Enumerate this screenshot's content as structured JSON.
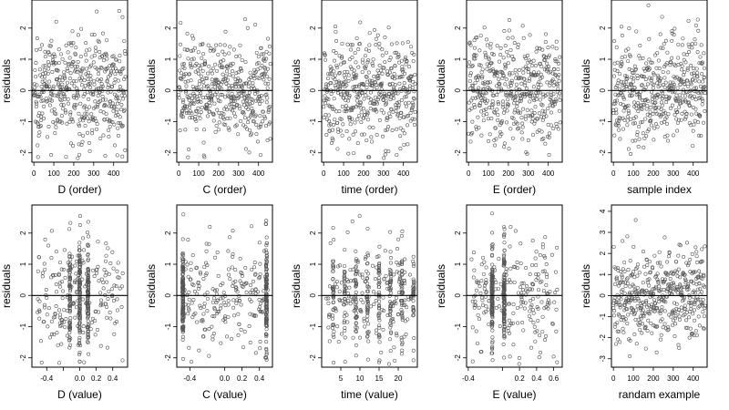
{
  "figure": {
    "point_color": "#555555",
    "line_color": "#000000",
    "background": "#ffffff"
  },
  "chart_data": [
    {
      "type": "scatter",
      "xlabel": "D (order)",
      "ylabel": "residuals",
      "xlim": [
        -10,
        470
      ],
      "ylim": [
        -2.3,
        2.9
      ],
      "xticks": [
        0,
        100,
        200,
        300,
        400
      ],
      "yticks": [
        -2,
        -1,
        0,
        1,
        2
      ],
      "x_kind": "index",
      "x_clusters": [],
      "refline_y": 0,
      "n_points": 470
    },
    {
      "type": "scatter",
      "xlabel": "C (order)",
      "ylabel": "residuals",
      "xlim": [
        -10,
        470
      ],
      "ylim": [
        -2.3,
        2.9
      ],
      "xticks": [
        0,
        100,
        200,
        300,
        400
      ],
      "yticks": [
        -2,
        -1,
        0,
        1,
        2
      ],
      "x_kind": "index",
      "x_clusters": [],
      "refline_y": 0,
      "n_points": 470
    },
    {
      "type": "scatter",
      "xlabel": "time (order)",
      "ylabel": "residuals",
      "xlim": [
        -10,
        470
      ],
      "ylim": [
        -2.3,
        2.9
      ],
      "xticks": [
        0,
        100,
        200,
        300,
        400
      ],
      "yticks": [
        -2,
        -1,
        0,
        1,
        2
      ],
      "x_kind": "index",
      "x_clusters": [],
      "refline_y": 0,
      "n_points": 470
    },
    {
      "type": "scatter",
      "xlabel": "E (order)",
      "ylabel": "residuals",
      "xlim": [
        -10,
        470
      ],
      "ylim": [
        -2.3,
        2.9
      ],
      "xticks": [
        0,
        100,
        200,
        300,
        400
      ],
      "yticks": [
        -2,
        -1,
        0,
        1,
        2
      ],
      "x_kind": "index",
      "x_clusters": [],
      "refline_y": 0,
      "n_points": 470
    },
    {
      "type": "scatter",
      "xlabel": "sample index",
      "ylabel": "residuals",
      "xlim": [
        -10,
        470
      ],
      "ylim": [
        -2.3,
        2.9
      ],
      "xticks": [
        0,
        100,
        200,
        300,
        400
      ],
      "yticks": [
        -2,
        -1,
        0,
        1,
        2
      ],
      "x_kind": "index",
      "x_clusters": [],
      "refline_y": 0,
      "n_points": 470
    },
    {
      "type": "scatter",
      "xlabel": "D (value)",
      "ylabel": "residuals",
      "xlim": [
        -0.58,
        0.58
      ],
      "ylim": [
        -2.3,
        2.9
      ],
      "xticks": [
        -0.4,
        -0.2,
        0.0,
        0.2,
        0.4
      ],
      "xtick_labels": [
        "-0.4",
        "",
        "0.0",
        "0.2",
        "0.4"
      ],
      "yticks": [
        -2,
        -1,
        0,
        1,
        2
      ],
      "x_kind": "value",
      "x_clusters": [
        -0.12,
        0.0,
        0.1
      ],
      "refline_y": 0,
      "n_points": 470
    },
    {
      "type": "scatter",
      "xlabel": "C (value)",
      "ylabel": "residuals",
      "xlim": [
        -0.55,
        0.55
      ],
      "ylim": [
        -2.3,
        2.9
      ],
      "xticks": [
        -0.4,
        0.0,
        0.2,
        0.4
      ],
      "xtick_labels": [
        "-0.4",
        "0.0",
        "0.2",
        "0.4"
      ],
      "yticks": [
        -2,
        -1,
        0,
        1,
        2
      ],
      "x_kind": "value",
      "x_clusters": [
        -0.48,
        0.48
      ],
      "refline_y": 0,
      "n_points": 470
    },
    {
      "type": "scatter",
      "xlabel": "time (value)",
      "ylabel": "residuals",
      "xlim": [
        0,
        25
      ],
      "ylim": [
        -2.3,
        2.9
      ],
      "xticks": [
        5,
        10,
        15,
        20
      ],
      "yticks": [
        -2,
        -1,
        0,
        1,
        2
      ],
      "x_kind": "value",
      "x_clusters": [
        3,
        6,
        9,
        12,
        15,
        18,
        21,
        24
      ],
      "refline_y": 0,
      "n_points": 470
    },
    {
      "type": "scatter",
      "xlabel": "E (value)",
      "ylabel": "residuals",
      "xlim": [
        -0.42,
        0.7
      ],
      "ylim": [
        -2.3,
        2.9
      ],
      "xticks": [
        -0.4,
        0.0,
        0.2,
        0.4,
        0.6
      ],
      "xtick_labels": [
        "-0.4",
        "",
        "0.2",
        "0.4",
        "0.6"
      ],
      "yticks": [
        -2,
        -1,
        0,
        1,
        2
      ],
      "x_kind": "value",
      "x_clusters": [
        -0.12,
        0.02
      ],
      "refline_y": 0,
      "n_points": 470
    },
    {
      "type": "scatter",
      "xlabel": "randam example",
      "ylabel": "residuals",
      "xlim": [
        -10,
        470
      ],
      "ylim": [
        -3.4,
        4.3
      ],
      "xticks": [
        0,
        100,
        200,
        300,
        400
      ],
      "yticks": [
        -3,
        -2,
        -1,
        0,
        1,
        2,
        3,
        4
      ],
      "x_kind": "index",
      "x_clusters": [],
      "refline_y": 0,
      "n_points": 470
    }
  ]
}
